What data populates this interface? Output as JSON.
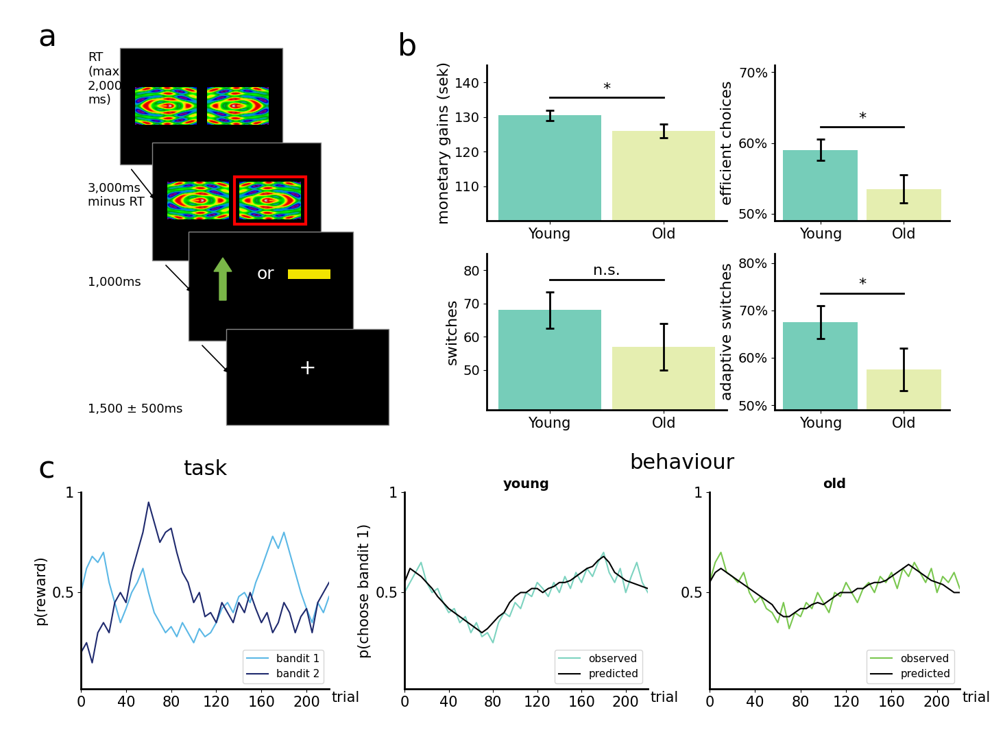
{
  "panel_labels": [
    "a",
    "b",
    "c"
  ],
  "panel_a": {
    "screens": [
      {
        "timing": "RT\n(max\n2,000\nms)"
      },
      {
        "timing": "3,000ms\nminus RT"
      },
      {
        "timing": "1,000ms",
        "text": "or"
      },
      {
        "timing": "1,500 ± 500ms",
        "text": "+"
      }
    ]
  },
  "group_title": "behaviour",
  "chart_data": [
    {
      "type": "bar",
      "categories": [
        "Young",
        "Old"
      ],
      "y_label": "monetary gains (sek)",
      "values": [
        130.5,
        126
      ],
      "errors": [
        1.5,
        2
      ],
      "colors": [
        "#76cdb9",
        "#e5eeb0"
      ],
      "ylim": [
        100,
        145
      ],
      "yticks": [
        110,
        120,
        130,
        140
      ],
      "annotation": "*"
    },
    {
      "type": "bar",
      "categories": [
        "Young",
        "Old"
      ],
      "y_label": "efficient choices",
      "values": [
        59,
        53.5
      ],
      "errors": [
        1.5,
        2
      ],
      "colors": [
        "#76cdb9",
        "#e5eeb0"
      ],
      "ylim": [
        49,
        71
      ],
      "yticks": [
        {
          "value": 50,
          "label": "50%"
        },
        {
          "value": 60,
          "label": "60%"
        },
        {
          "value": 70,
          "label": "70%"
        }
      ],
      "annotation": "*"
    },
    {
      "type": "bar",
      "categories": [
        "Young",
        "Old"
      ],
      "y_label": "switches",
      "values": [
        68,
        57
      ],
      "errors": [
        5.5,
        7
      ],
      "colors": [
        "#76cdb9",
        "#e5eeb0"
      ],
      "ylim": [
        38,
        85
      ],
      "yticks": [
        50,
        60,
        70,
        80
      ],
      "annotation": "n.s."
    },
    {
      "type": "bar",
      "categories": [
        "Young",
        "Old"
      ],
      "y_label": "adaptive switches",
      "values": [
        67.5,
        57.5
      ],
      "errors": [
        3.5,
        4.5
      ],
      "colors": [
        "#76cdb9",
        "#e5eeb0"
      ],
      "ylim": [
        49,
        82
      ],
      "yticks": [
        {
          "value": 50,
          "label": "50%"
        },
        {
          "value": 60,
          "label": "60%"
        },
        {
          "value": 70,
          "label": "70%"
        },
        {
          "value": 80,
          "label": "80%"
        }
      ],
      "annotation": "*"
    },
    {
      "type": "line",
      "title": "task",
      "x_label": "trial",
      "y_label": "p(reward)",
      "x": [
        0,
        5,
        10,
        15,
        20,
        25,
        30,
        35,
        40,
        45,
        50,
        55,
        60,
        65,
        70,
        75,
        80,
        85,
        90,
        95,
        100,
        105,
        110,
        115,
        120,
        125,
        130,
        135,
        140,
        145,
        150,
        155,
        160,
        165,
        170,
        175,
        180,
        185,
        190,
        195,
        200,
        205,
        210,
        215,
        220
      ],
      "series": [
        {
          "name": "bandit 1",
          "color": "#5bb8e6",
          "values": [
            0.5,
            0.62,
            0.68,
            0.65,
            0.7,
            0.55,
            0.45,
            0.35,
            0.42,
            0.5,
            0.55,
            0.62,
            0.5,
            0.4,
            0.35,
            0.3,
            0.33,
            0.28,
            0.35,
            0.3,
            0.25,
            0.32,
            0.28,
            0.3,
            0.35,
            0.42,
            0.45,
            0.4,
            0.48,
            0.5,
            0.45,
            0.55,
            0.62,
            0.7,
            0.78,
            0.72,
            0.8,
            0.7,
            0.6,
            0.5,
            0.42,
            0.35,
            0.45,
            0.4,
            0.48
          ]
        },
        {
          "name": "bandit 2",
          "color": "#1f2a6e",
          "values": [
            0.2,
            0.25,
            0.15,
            0.3,
            0.35,
            0.3,
            0.45,
            0.5,
            0.45,
            0.6,
            0.7,
            0.8,
            0.95,
            0.85,
            0.75,
            0.8,
            0.82,
            0.7,
            0.6,
            0.55,
            0.45,
            0.5,
            0.38,
            0.4,
            0.35,
            0.45,
            0.4,
            0.35,
            0.45,
            0.4,
            0.5,
            0.42,
            0.35,
            0.4,
            0.3,
            0.35,
            0.45,
            0.4,
            0.3,
            0.38,
            0.42,
            0.3,
            0.45,
            0.5,
            0.55
          ]
        }
      ],
      "xlim": [
        0,
        220
      ],
      "xticks": [
        0,
        40,
        80,
        120,
        160,
        200
      ],
      "ylim": [
        0.02,
        1
      ],
      "yticks": [
        0.5,
        1
      ],
      "legend": "lower right"
    },
    {
      "type": "line",
      "title": "young",
      "x_label": "trial",
      "y_label": "p(choose bandit 1)",
      "x": [
        0,
        5,
        10,
        15,
        20,
        25,
        30,
        35,
        40,
        45,
        50,
        55,
        60,
        65,
        70,
        75,
        80,
        85,
        90,
        95,
        100,
        105,
        110,
        115,
        120,
        125,
        130,
        135,
        140,
        145,
        150,
        155,
        160,
        165,
        170,
        175,
        180,
        185,
        190,
        195,
        200,
        205,
        210,
        215,
        220
      ],
      "series": [
        {
          "name": "observed",
          "color": "#7dd3c0",
          "values": [
            0.5,
            0.55,
            0.6,
            0.65,
            0.55,
            0.5,
            0.52,
            0.45,
            0.4,
            0.42,
            0.35,
            0.38,
            0.3,
            0.35,
            0.28,
            0.3,
            0.25,
            0.35,
            0.4,
            0.38,
            0.45,
            0.42,
            0.5,
            0.48,
            0.55,
            0.52,
            0.48,
            0.55,
            0.5,
            0.58,
            0.52,
            0.6,
            0.55,
            0.62,
            0.58,
            0.65,
            0.7,
            0.6,
            0.55,
            0.62,
            0.5,
            0.58,
            0.65,
            0.55,
            0.5
          ]
        },
        {
          "name": "predicted",
          "color": "#000000",
          "values": [
            0.55,
            0.62,
            0.6,
            0.58,
            0.55,
            0.52,
            0.48,
            0.45,
            0.42,
            0.4,
            0.38,
            0.36,
            0.34,
            0.32,
            0.3,
            0.32,
            0.35,
            0.38,
            0.4,
            0.45,
            0.48,
            0.5,
            0.5,
            0.52,
            0.52,
            0.5,
            0.52,
            0.53,
            0.55,
            0.55,
            0.56,
            0.58,
            0.6,
            0.62,
            0.63,
            0.66,
            0.68,
            0.65,
            0.6,
            0.58,
            0.56,
            0.55,
            0.54,
            0.53,
            0.52
          ]
        }
      ],
      "xlim": [
        0,
        220
      ],
      "xticks": [
        0,
        40,
        80,
        120,
        160,
        200
      ],
      "ylim": [
        0.02,
        1
      ],
      "yticks": [
        0.5,
        1
      ],
      "legend": "lower right"
    },
    {
      "type": "line",
      "title": "old",
      "x_label": "trial",
      "x": [
        0,
        5,
        10,
        15,
        20,
        25,
        30,
        35,
        40,
        45,
        50,
        55,
        60,
        65,
        70,
        75,
        80,
        85,
        90,
        95,
        100,
        105,
        110,
        115,
        120,
        125,
        130,
        135,
        140,
        145,
        150,
        155,
        160,
        165,
        170,
        175,
        180,
        185,
        190,
        195,
        200,
        205,
        210,
        215,
        220
      ],
      "series": [
        {
          "name": "observed",
          "color": "#7ac74f",
          "values": [
            0.55,
            0.65,
            0.7,
            0.6,
            0.58,
            0.55,
            0.6,
            0.5,
            0.45,
            0.48,
            0.42,
            0.4,
            0.35,
            0.45,
            0.32,
            0.4,
            0.38,
            0.45,
            0.42,
            0.5,
            0.45,
            0.4,
            0.5,
            0.48,
            0.55,
            0.5,
            0.45,
            0.52,
            0.55,
            0.5,
            0.58,
            0.55,
            0.6,
            0.52,
            0.62,
            0.58,
            0.65,
            0.6,
            0.55,
            0.62,
            0.5,
            0.58,
            0.55,
            0.6,
            0.52
          ]
        },
        {
          "name": "predicted",
          "color": "#000000",
          "values": [
            0.55,
            0.6,
            0.62,
            0.6,
            0.58,
            0.56,
            0.54,
            0.52,
            0.5,
            0.48,
            0.46,
            0.44,
            0.4,
            0.38,
            0.38,
            0.4,
            0.42,
            0.42,
            0.44,
            0.45,
            0.44,
            0.46,
            0.48,
            0.5,
            0.5,
            0.5,
            0.52,
            0.52,
            0.54,
            0.55,
            0.55,
            0.56,
            0.58,
            0.6,
            0.62,
            0.64,
            0.62,
            0.6,
            0.58,
            0.56,
            0.55,
            0.54,
            0.52,
            0.5,
            0.5
          ]
        }
      ],
      "xlim": [
        0,
        220
      ],
      "xticks": [
        0,
        40,
        80,
        120,
        160,
        200
      ],
      "ylim": [
        0.02,
        1
      ],
      "yticks": [
        0.5,
        1
      ],
      "legend": "lower right"
    }
  ]
}
